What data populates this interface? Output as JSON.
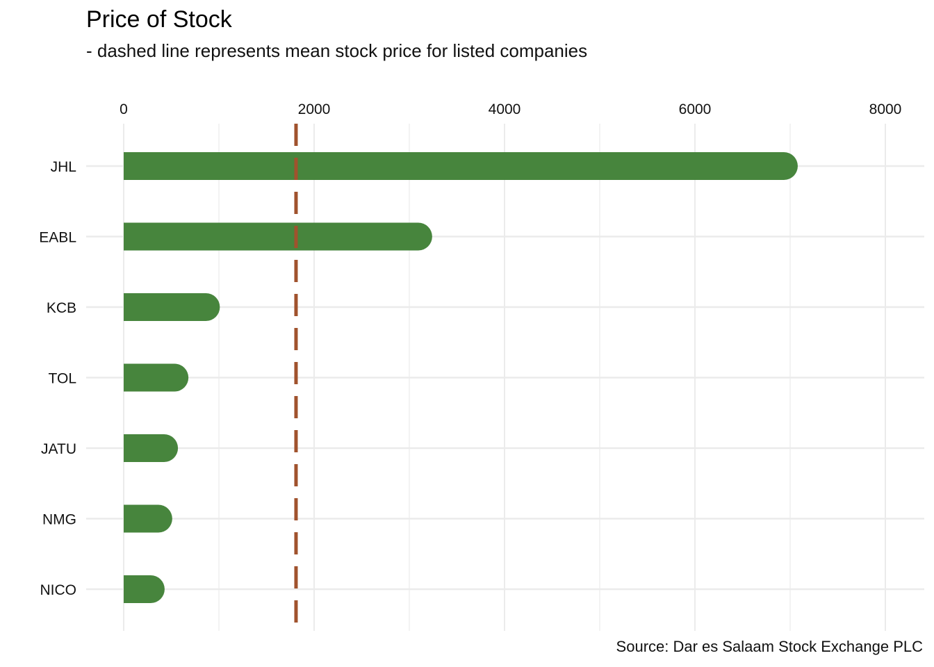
{
  "chart_data": {
    "type": "bar",
    "orientation": "horizontal",
    "title": "Price of Stock",
    "subtitle": "- dashed line represents mean stock price for listed companies",
    "caption": "Source: Dar es Salaam Stock Exchange PLC",
    "categories": [
      "JHL",
      "EABL",
      "KCB",
      "TOL",
      "JATU",
      "NMG",
      "NICO"
    ],
    "values": [
      7080,
      3240,
      1010,
      680,
      570,
      510,
      430
    ],
    "mean_line": 1810,
    "x_ticks": [
      "0",
      "2000",
      "4000",
      "6000",
      "8000"
    ],
    "xlim": [
      0,
      8000
    ],
    "x_axis_position": "top",
    "grid": true,
    "legend": "none",
    "colors": {
      "bar": "#47853d",
      "mean_line": "#a0522d",
      "grid": "#ebebeb"
    }
  }
}
